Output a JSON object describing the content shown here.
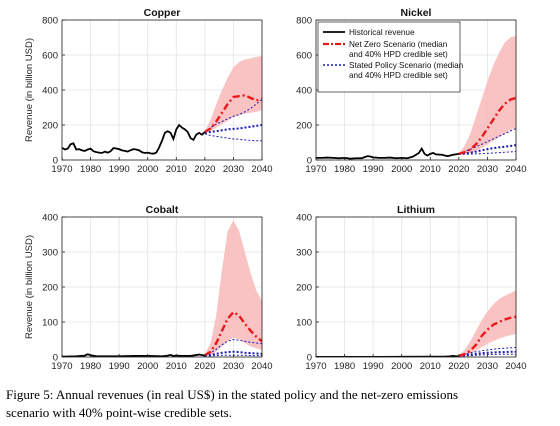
{
  "caption": {
    "line1": "Figure 5: Annual revenues (in real US$) in the stated policy and the net-zero emissions",
    "line2": "scenario with 40% point-wise credible sets."
  },
  "colors": {
    "historical": "#000000",
    "net_zero": "#e8191b",
    "net_zero_band": "#f9b8b8",
    "stated_policy": "#1a1ab5",
    "grid": "#e4e4e4"
  },
  "legend": {
    "placement": "top-right of Nickel panel",
    "items": [
      {
        "key": "historical",
        "label1": "Historical revenue",
        "label2": ""
      },
      {
        "key": "net_zero",
        "label1": "Net Zero Scenario (median",
        "label2": "and 40% HPD credible set)"
      },
      {
        "key": "stated_policy",
        "label1": "Stated Policy Scenario (median",
        "label2": "and 40% HPD credible set)"
      }
    ]
  },
  "chart_data": [
    {
      "type": "line",
      "title": "Copper",
      "ylabel": "Revenue (in billion USD)",
      "xlabel": "",
      "xlim": [
        1970,
        2040
      ],
      "ylim": [
        0,
        800
      ],
      "xticks": [
        1970,
        1980,
        1990,
        2000,
        2010,
        2020,
        2030,
        2040
      ],
      "yticks": [
        0,
        200,
        400,
        600,
        800
      ],
      "grid": true,
      "historical": {
        "x": [
          1970,
          1971,
          1972,
          1973,
          1974,
          1975,
          1976,
          1977,
          1978,
          1979,
          1980,
          1981,
          1982,
          1983,
          1984,
          1985,
          1986,
          1987,
          1988,
          1989,
          1990,
          1991,
          1992,
          1993,
          1994,
          1995,
          1996,
          1997,
          1998,
          1999,
          2000,
          2001,
          2002,
          2003,
          2004,
          2005,
          2006,
          2007,
          2008,
          2009,
          2010,
          2011,
          2012,
          2013,
          2014,
          2015,
          2016,
          2017,
          2018,
          2019,
          2020
        ],
        "y": [
          70,
          60,
          65,
          90,
          95,
          60,
          62,
          55,
          52,
          60,
          65,
          50,
          45,
          42,
          40,
          48,
          42,
          50,
          68,
          66,
          62,
          55,
          52,
          48,
          56,
          62,
          60,
          55,
          44,
          40,
          42,
          38,
          36,
          42,
          72,
          110,
          155,
          165,
          155,
          120,
          175,
          200,
          185,
          175,
          160,
          125,
          115,
          145,
          155,
          145,
          160
        ]
      },
      "net_zero": {
        "x": [
          2020,
          2022,
          2024,
          2026,
          2028,
          2030,
          2032,
          2034,
          2036,
          2038,
          2040
        ],
        "median": [
          160,
          180,
          220,
          270,
          320,
          360,
          365,
          370,
          355,
          340,
          350
        ],
        "lower": [
          155,
          165,
          185,
          205,
          225,
          245,
          255,
          265,
          270,
          275,
          285
        ],
        "upper": [
          165,
          230,
          320,
          400,
          470,
          530,
          560,
          575,
          580,
          590,
          595
        ]
      },
      "stated_policy": {
        "x": [
          2020,
          2022,
          2024,
          2026,
          2028,
          2030,
          2032,
          2034,
          2036,
          2038,
          2040
        ],
        "median": [
          155,
          160,
          165,
          170,
          175,
          178,
          180,
          185,
          190,
          195,
          200
        ],
        "lower": [
          150,
          140,
          135,
          130,
          125,
          120,
          118,
          115,
          112,
          110,
          110
        ],
        "upper": [
          160,
          185,
          205,
          220,
          235,
          250,
          260,
          275,
          295,
          320,
          345
        ]
      }
    },
    {
      "type": "line",
      "title": "Nickel",
      "ylabel": "",
      "xlabel": "",
      "xlim": [
        1970,
        2040
      ],
      "ylim": [
        0,
        800
      ],
      "xticks": [
        1970,
        1980,
        1990,
        2000,
        2010,
        2020,
        2030,
        2040
      ],
      "yticks": [
        0,
        200,
        400,
        600,
        800
      ],
      "grid": true,
      "historical": {
        "x": [
          1970,
          1972,
          1974,
          1976,
          1978,
          1980,
          1982,
          1984,
          1986,
          1988,
          1989,
          1990,
          1992,
          1994,
          1996,
          1998,
          2000,
          2002,
          2004,
          2006,
          2007,
          2008,
          2009,
          2010,
          2011,
          2012,
          2014,
          2016,
          2018,
          2020
        ],
        "y": [
          12,
          12,
          14,
          12,
          10,
          12,
          8,
          10,
          10,
          22,
          20,
          15,
          12,
          12,
          14,
          10,
          12,
          10,
          20,
          40,
          65,
          35,
          25,
          35,
          40,
          32,
          30,
          22,
          30,
          35
        ]
      },
      "net_zero": {
        "x": [
          2020,
          2022,
          2024,
          2026,
          2028,
          2030,
          2032,
          2034,
          2036,
          2038,
          2040
        ],
        "median": [
          35,
          45,
          60,
          90,
          130,
          180,
          230,
          280,
          320,
          345,
          355
        ],
        "lower": [
          30,
          35,
          40,
          50,
          70,
          90,
          110,
          130,
          150,
          170,
          185
        ],
        "upper": [
          40,
          80,
          150,
          250,
          350,
          450,
          540,
          610,
          670,
          700,
          710
        ]
      },
      "stated_policy": {
        "x": [
          2020,
          2022,
          2024,
          2026,
          2028,
          2030,
          2032,
          2034,
          2036,
          2038,
          2040
        ],
        "median": [
          35,
          38,
          42,
          48,
          55,
          62,
          68,
          72,
          76,
          80,
          85
        ],
        "lower": [
          32,
          33,
          34,
          35,
          36,
          38,
          40,
          42,
          44,
          46,
          48
        ],
        "upper": [
          38,
          48,
          60,
          75,
          90,
          105,
          120,
          135,
          150,
          165,
          180
        ]
      }
    },
    {
      "type": "line",
      "title": "Cobalt",
      "ylabel": "Revenue (in billion USD)",
      "xlabel": "",
      "xlim": [
        1970,
        2040
      ],
      "ylim": [
        0,
        400
      ],
      "xticks": [
        1970,
        1980,
        1990,
        2000,
        2010,
        2020,
        2030,
        2040
      ],
      "yticks": [
        0,
        100,
        200,
        300,
        400
      ],
      "grid": true,
      "historical": {
        "x": [
          1970,
          1975,
          1978,
          1979,
          1980,
          1982,
          1985,
          1990,
          1995,
          2000,
          2005,
          2007,
          2008,
          2009,
          2010,
          2012,
          2015,
          2018,
          2020
        ],
        "y": [
          1,
          2,
          4,
          8,
          5,
          2,
          2,
          2,
          3,
          3,
          2,
          4,
          6,
          3,
          4,
          3,
          3,
          7,
          4
        ]
      },
      "net_zero": {
        "x": [
          2020,
          2022,
          2024,
          2026,
          2028,
          2030,
          2032,
          2034,
          2036,
          2038,
          2040
        ],
        "median": [
          5,
          15,
          40,
          75,
          110,
          128,
          118,
          95,
          75,
          58,
          45
        ],
        "lower": [
          3,
          5,
          15,
          30,
          45,
          55,
          50,
          40,
          30,
          25,
          20
        ],
        "upper": [
          8,
          40,
          120,
          250,
          360,
          390,
          360,
          300,
          240,
          190,
          160
        ]
      },
      "stated_policy": {
        "x": [
          2020,
          2022,
          2024,
          2026,
          2028,
          2030,
          2032,
          2034,
          2036,
          2038,
          2040
        ],
        "median": [
          4,
          6,
          9,
          12,
          14,
          15,
          14,
          12,
          11,
          10,
          9
        ],
        "lower": [
          3,
          3,
          4,
          5,
          5,
          5,
          5,
          5,
          4,
          4,
          4
        ],
        "upper": [
          5,
          12,
          22,
          35,
          45,
          50,
          48,
          45,
          42,
          40,
          38
        ]
      }
    },
    {
      "type": "line",
      "title": "Lithium",
      "ylabel": "",
      "xlabel": "",
      "xlim": [
        1970,
        2040
      ],
      "ylim": [
        0,
        400
      ],
      "xticks": [
        1970,
        1980,
        1990,
        2000,
        2010,
        2020,
        2030,
        2040
      ],
      "yticks": [
        0,
        100,
        200,
        300,
        400
      ],
      "grid": true,
      "historical": {
        "x": [
          1970,
          1980,
          1990,
          2000,
          2010,
          2015,
          2017,
          2018,
          2019,
          2020
        ],
        "y": [
          0.2,
          0.3,
          0.4,
          0.5,
          1,
          1,
          2,
          3,
          2,
          2
        ]
      },
      "net_zero": {
        "x": [
          2020,
          2022,
          2024,
          2026,
          2028,
          2030,
          2032,
          2034,
          2036,
          2038,
          2040
        ],
        "median": [
          3,
          8,
          18,
          35,
          60,
          78,
          92,
          100,
          107,
          112,
          115
        ],
        "lower": [
          2,
          5,
          10,
          18,
          28,
          38,
          45,
          52,
          58,
          62,
          66
        ],
        "upper": [
          5,
          20,
          45,
          75,
          105,
          130,
          150,
          165,
          175,
          182,
          190
        ]
      },
      "stated_policy": {
        "x": [
          2020,
          2022,
          2024,
          2026,
          2028,
          2030,
          2032,
          2034,
          2036,
          2038,
          2040
        ],
        "median": [
          3,
          5,
          7,
          9,
          11,
          12,
          13,
          14,
          14,
          15,
          15
        ],
        "lower": [
          2,
          3,
          4,
          5,
          6,
          7,
          7,
          8,
          8,
          8,
          8
        ],
        "upper": [
          4,
          8,
          12,
          15,
          18,
          20,
          22,
          24,
          25,
          26,
          27
        ]
      }
    }
  ]
}
